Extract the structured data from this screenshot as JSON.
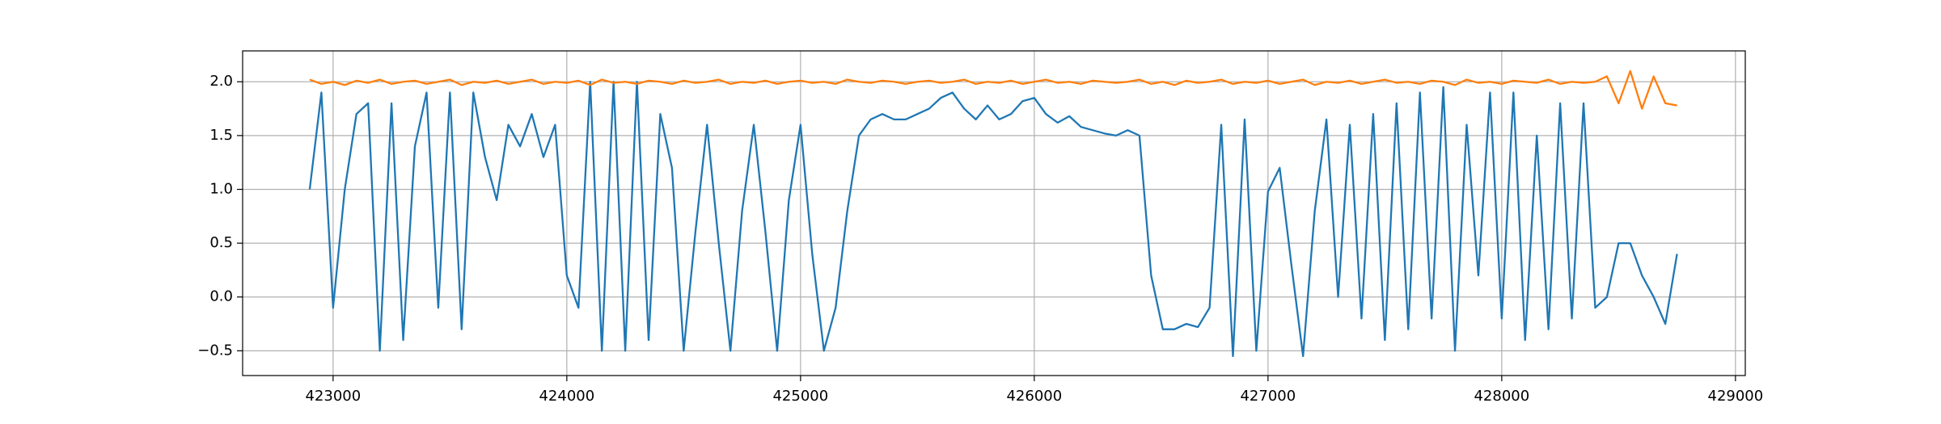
{
  "chart_data": {
    "type": "line",
    "x": [
      422900,
      422950,
      423000,
      423050,
      423100,
      423150,
      423200,
      423250,
      423300,
      423350,
      423400,
      423450,
      423500,
      423550,
      423600,
      423650,
      423700,
      423750,
      423800,
      423850,
      423900,
      423950,
      424000,
      424050,
      424100,
      424150,
      424200,
      424250,
      424300,
      424350,
      424400,
      424450,
      424500,
      424550,
      424600,
      424650,
      424700,
      424750,
      424800,
      424850,
      424900,
      424950,
      425000,
      425050,
      425100,
      425150,
      425200,
      425250,
      425300,
      425350,
      425400,
      425450,
      425500,
      425550,
      425600,
      425650,
      425700,
      425750,
      425800,
      425850,
      425900,
      425950,
      426000,
      426050,
      426100,
      426150,
      426200,
      426250,
      426300,
      426350,
      426400,
      426450,
      426500,
      426550,
      426600,
      426650,
      426700,
      426750,
      426800,
      426850,
      426900,
      426950,
      427000,
      427050,
      427100,
      427150,
      427200,
      427250,
      427300,
      427350,
      427400,
      427450,
      427500,
      427550,
      427600,
      427650,
      427700,
      427750,
      427800,
      427850,
      427900,
      427950,
      428000,
      428050,
      428100,
      428150,
      428200,
      428250,
      428300,
      428350,
      428400,
      428450,
      428500,
      428550,
      428600,
      428650,
      428700,
      428750
    ],
    "series": [
      {
        "color": "#1f77b4",
        "values": [
          1.0,
          1.9,
          -0.1,
          1.0,
          1.7,
          1.8,
          -0.5,
          1.8,
          -0.4,
          1.4,
          1.9,
          -0.1,
          1.9,
          -0.3,
          1.9,
          1.3,
          0.9,
          1.6,
          1.4,
          1.7,
          1.3,
          1.6,
          0.2,
          -0.1,
          2.0,
          -0.5,
          2.0,
          -0.5,
          2.0,
          -0.4,
          1.7,
          1.2,
          -0.5,
          0.6,
          1.6,
          0.5,
          -0.5,
          0.8,
          1.6,
          0.6,
          -0.5,
          0.9,
          1.6,
          0.4,
          -0.5,
          -0.1,
          0.8,
          1.5,
          1.65,
          1.7,
          1.65,
          1.65,
          1.7,
          1.75,
          1.85,
          1.9,
          1.75,
          1.65,
          1.78,
          1.65,
          1.7,
          1.82,
          1.85,
          1.7,
          1.62,
          1.68,
          1.58,
          1.55,
          1.52,
          1.5,
          1.55,
          1.5,
          0.2,
          -0.3,
          -0.3,
          -0.25,
          -0.28,
          -0.1,
          1.6,
          -0.55,
          1.65,
          -0.5,
          0.98,
          1.2,
          0.3,
          -0.55,
          0.8,
          1.65,
          0.0,
          1.6,
          -0.2,
          1.7,
          -0.4,
          1.8,
          -0.3,
          1.9,
          -0.2,
          1.95,
          -0.5,
          1.6,
          0.2,
          1.9,
          -0.2,
          1.9,
          -0.4,
          1.5,
          -0.3,
          1.8,
          -0.2,
          1.8,
          -0.1,
          0.0,
          0.5,
          0.5,
          0.2,
          0.0,
          -0.25,
          0.4
        ]
      },
      {
        "color": "#ff7f0e",
        "values": [
          2.02,
          1.98,
          2.0,
          1.97,
          2.01,
          1.99,
          2.02,
          1.98,
          2.0,
          2.01,
          1.98,
          2.0,
          2.02,
          1.97,
          2.0,
          1.99,
          2.01,
          1.98,
          2.0,
          2.02,
          1.98,
          2.0,
          1.99,
          2.01,
          1.97,
          2.02,
          1.99,
          2.0,
          1.98,
          2.01,
          2.0,
          1.98,
          2.01,
          1.99,
          2.0,
          2.02,
          1.98,
          2.0,
          1.99,
          2.01,
          1.98,
          2.0,
          2.01,
          1.99,
          2.0,
          1.98,
          2.02,
          2.0,
          1.99,
          2.01,
          2.0,
          1.98,
          2.0,
          2.01,
          1.99,
          2.0,
          2.02,
          1.98,
          2.0,
          1.99,
          2.01,
          1.98,
          2.0,
          2.02,
          1.99,
          2.0,
          1.98,
          2.01,
          2.0,
          1.99,
          2.0,
          2.02,
          1.98,
          2.0,
          1.97,
          2.01,
          1.99,
          2.0,
          2.02,
          1.98,
          2.0,
          1.99,
          2.01,
          1.98,
          2.0,
          2.02,
          1.97,
          2.0,
          1.99,
          2.01,
          1.98,
          2.0,
          2.02,
          1.99,
          2.0,
          1.98,
          2.01,
          2.0,
          1.97,
          2.02,
          1.99,
          2.0,
          1.98,
          2.01,
          2.0,
          1.99,
          2.02,
          1.98,
          2.0,
          1.99,
          2.0,
          2.05,
          1.8,
          2.1,
          1.75,
          2.05,
          1.8,
          1.78
        ]
      }
    ],
    "xlim": [
      422613,
      429042
    ],
    "ylim": [
      -0.73,
      2.287
    ],
    "xticks": [
      423000,
      424000,
      425000,
      426000,
      427000,
      428000,
      429000
    ],
    "yticks": [
      {
        "value": -0.5,
        "label": "−0.5"
      },
      {
        "value": 0,
        "label": "0.0"
      },
      0.5,
      {
        "value": 1,
        "label": "1.0"
      },
      1.5,
      {
        "value": 2,
        "label": "2.0"
      }
    ],
    "grid": true
  }
}
